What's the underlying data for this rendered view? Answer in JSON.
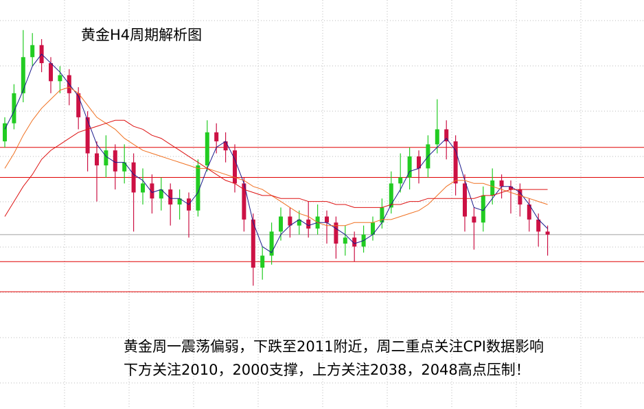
{
  "chart_data": {
    "type": "candlestick",
    "title": "黄金H4周期解析图",
    "annotations": [
      "黄金周一震荡偏弱，下跌至2011附近，周二重点关注CPI数据影响",
      "下方关注2010，2000支撑，上方关注2038，2048高点压制！"
    ],
    "ylim": [
      1961,
      2097
    ],
    "grid": true,
    "up_color": "#22cc22",
    "down_color": "#cc1144",
    "open": [
      2050,
      2056,
      2066,
      2078,
      2082,
      2076,
      2070,
      2072,
      2066,
      2058,
      2046,
      2042,
      2047,
      2040,
      2043,
      2033,
      2036,
      2031,
      2034,
      2029,
      2031,
      2027,
      2042,
      2053,
      2050,
      2047,
      2036,
      2024,
      2008,
      2012,
      2020,
      2025,
      2022,
      2024,
      2021,
      2025,
      2023,
      2016,
      2018,
      2015,
      2019,
      2023,
      2028,
      2036,
      2038,
      2045,
      2041,
      2049,
      2054,
      2050,
      2036,
      2025,
      2023,
      2032,
      2037,
      2035,
      2034,
      2029,
      2024,
      2020
    ],
    "high": [
      2058,
      2069,
      2087,
      2086,
      2084,
      2078,
      2075,
      2074,
      2068,
      2060,
      2050,
      2052,
      2049,
      2049,
      2046,
      2041,
      2039,
      2038,
      2036,
      2034,
      2033,
      2044,
      2057,
      2056,
      2053,
      2049,
      2038,
      2026,
      2015,
      2023,
      2028,
      2028,
      2027,
      2030,
      2029,
      2027,
      2025,
      2022,
      2020,
      2022,
      2025,
      2031,
      2040,
      2046,
      2048,
      2047,
      2052,
      2064,
      2057,
      2052,
      2039,
      2028,
      2035,
      2041,
      2039,
      2037,
      2036,
      2031,
      2026,
      2022
    ],
    "low": [
      2048,
      2054,
      2063,
      2075,
      2073,
      2066,
      2066,
      2062,
      2054,
      2040,
      2030,
      2038,
      2034,
      2036,
      2020,
      2029,
      2026,
      2027,
      2022,
      2024,
      2018,
      2025,
      2040,
      2046,
      2043,
      2033,
      2020,
      2002,
      2004,
      2009,
      2017,
      2018,
      2019,
      2018,
      2019,
      2016,
      2011,
      2012,
      2010,
      2013,
      2017,
      2021,
      2026,
      2033,
      2034,
      2036,
      2038,
      2046,
      2044,
      2032,
      2020,
      2014,
      2020,
      2029,
      2031,
      2026,
      2025,
      2020,
      2015,
      2012
    ],
    "close": [
      2056,
      2066,
      2078,
      2082,
      2076,
      2070,
      2072,
      2066,
      2058,
      2046,
      2042,
      2047,
      2040,
      2043,
      2033,
      2036,
      2031,
      2034,
      2029,
      2031,
      2027,
      2042,
      2053,
      2050,
      2047,
      2036,
      2024,
      2008,
      2012,
      2020,
      2025,
      2022,
      2024,
      2021,
      2025,
      2023,
      2016,
      2018,
      2015,
      2019,
      2023,
      2028,
      2036,
      2038,
      2045,
      2041,
      2049,
      2054,
      2050,
      2036,
      2025,
      2023,
      2032,
      2037,
      2035,
      2034,
      2029,
      2024,
      2020,
      2019
    ],
    "lines": [
      {
        "color": "#1a1a8c",
        "values": [
          2054,
          2060,
          2067,
          2075,
          2079,
          2076,
          2073,
          2069,
          2065,
          2057,
          2049,
          2045,
          2043,
          2043,
          2039,
          2037,
          2033,
          2034,
          2031,
          2031,
          2029,
          2033,
          2041,
          2048,
          2050,
          2044,
          2036,
          2023,
          2015,
          2013,
          2019,
          2022,
          2024,
          2022,
          2023,
          2023,
          2021,
          2019,
          2016,
          2017,
          2019,
          2023,
          2029,
          2034,
          2040,
          2041,
          2045,
          2048,
          2051,
          2047,
          2037,
          2028,
          2027,
          2031,
          2035,
          2035,
          2033,
          2029,
          2024,
          2021
        ]
      },
      {
        "color": "#f07020",
        "values": [
          2041,
          2046,
          2052,
          2057,
          2061,
          2064,
          2067,
          2068,
          2066,
          2062,
          2058,
          2056,
          2054,
          2051,
          2049,
          2047,
          2046,
          2045,
          2044,
          2043,
          2042,
          2041,
          2041,
          2040,
          2039,
          2038,
          2037,
          2035,
          2034,
          2032,
          2030,
          2028,
          2026,
          2025,
          2023,
          2022,
          2022,
          2022,
          2023,
          2023,
          2023,
          2024,
          2024,
          2025,
          2026,
          2027,
          2029,
          2032,
          2035,
          2037,
          2037,
          2036,
          2036,
          2035,
          2034,
          2033,
          2032,
          2031,
          2030,
          2029
        ]
      },
      {
        "color": "#dd1111",
        "values": [
          2025,
          2030,
          2035,
          2039,
          2044,
          2047,
          2049,
          2051,
          2053,
          2054,
          2055,
          2056,
          2057,
          2057,
          2055,
          2054,
          2052,
          2051,
          2049,
          2047,
          2045,
          2043,
          2041,
          2039,
          2037,
          2036,
          2034,
          2033,
          2032,
          2032,
          2031,
          2031,
          2031,
          2030,
          2030,
          2030,
          2029,
          2029,
          2028,
          2028,
          2028,
          2028,
          2029,
          2029,
          2030,
          2030,
          2031,
          2031,
          2031,
          2031,
          2031,
          2031,
          2032,
          2032,
          2033,
          2034,
          2034,
          2034,
          2034,
          2034
        ]
      }
    ],
    "levels": [
      2048,
      2038,
      2010,
      2000
    ],
    "level_color": "#e00000",
    "price_line_color": "#a0a0a0"
  }
}
